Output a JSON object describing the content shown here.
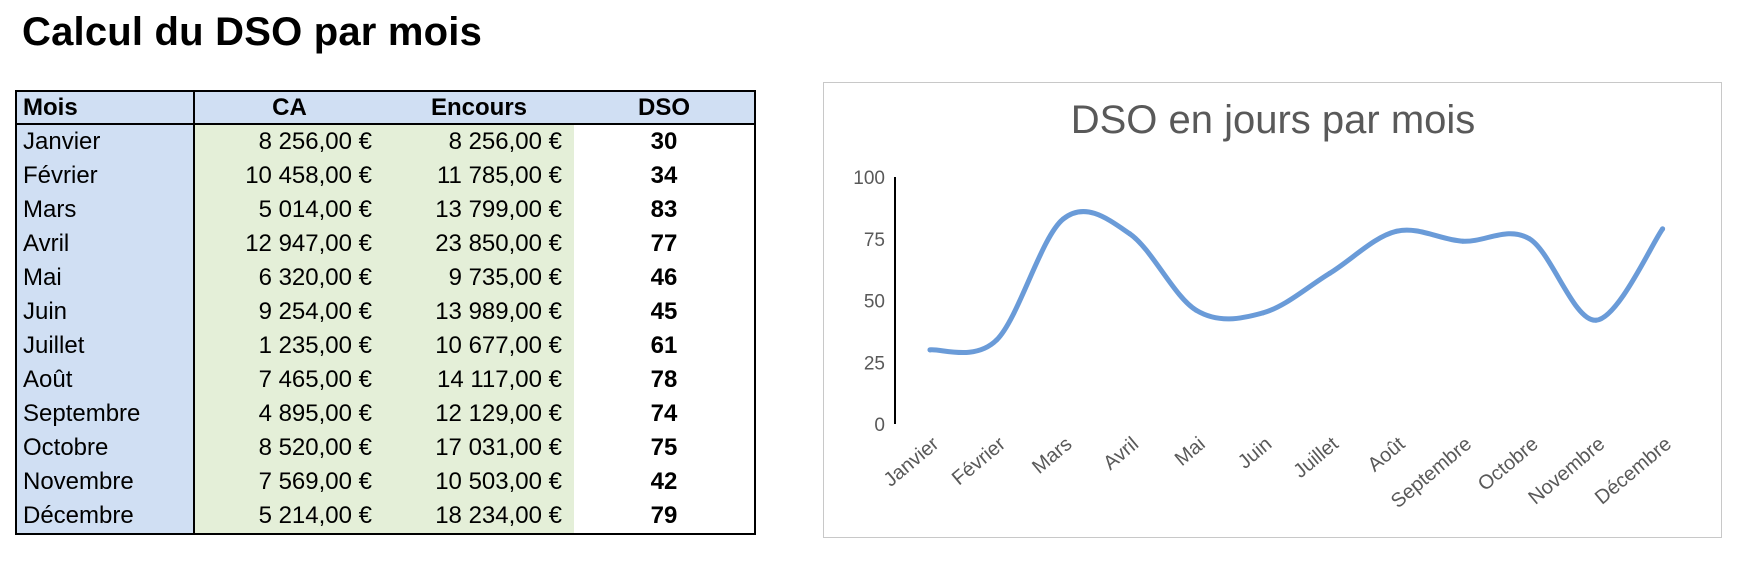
{
  "page": {
    "title": "Calcul du DSO par mois"
  },
  "table": {
    "headers": [
      "Mois",
      "CA",
      "Encours",
      "DSO"
    ],
    "rows": [
      {
        "mois": "Janvier",
        "ca": "8 256,00 €",
        "encours": "8 256,00 €",
        "dso": "30"
      },
      {
        "mois": "Février",
        "ca": "10 458,00 €",
        "encours": "11 785,00 €",
        "dso": "34"
      },
      {
        "mois": "Mars",
        "ca": "5 014,00 €",
        "encours": "13 799,00 €",
        "dso": "83"
      },
      {
        "mois": "Avril",
        "ca": "12 947,00 €",
        "encours": "23 850,00 €",
        "dso": "77"
      },
      {
        "mois": "Mai",
        "ca": "6 320,00 €",
        "encours": "9 735,00 €",
        "dso": "46"
      },
      {
        "mois": "Juin",
        "ca": "9 254,00 €",
        "encours": "13 989,00 €",
        "dso": "45"
      },
      {
        "mois": "Juillet",
        "ca": "1 235,00 €",
        "encours": "10 677,00 €",
        "dso": "61"
      },
      {
        "mois": "Août",
        "ca": "7 465,00 €",
        "encours": "14 117,00 €",
        "dso": "78"
      },
      {
        "mois": "Septembre",
        "ca": "4 895,00 €",
        "encours": "12 129,00 €",
        "dso": "74"
      },
      {
        "mois": "Octobre",
        "ca": "8 520,00 €",
        "encours": "17 031,00 €",
        "dso": "75"
      },
      {
        "mois": "Novembre",
        "ca": "7 569,00 €",
        "encours": "10 503,00 €",
        "dso": "42"
      },
      {
        "mois": "Décembre",
        "ca": "5 214,00 €",
        "encours": "18 234,00 €",
        "dso": "79"
      }
    ]
  },
  "colors": {
    "header_fill": "#d0dff3",
    "value_fill": "#e4efd8",
    "line": "#6a9bd8",
    "text_gray": "#595959"
  },
  "chart_data": {
    "type": "line",
    "title": "DSO en jours par mois",
    "categories": [
      "Janvier",
      "Février",
      "Mars",
      "Avril",
      "Mai",
      "Juin",
      "Juillet",
      "Août",
      "Septembre",
      "Octobre",
      "Novembre",
      "Décembre"
    ],
    "values": [
      30,
      34,
      83,
      77,
      46,
      45,
      61,
      78,
      74,
      75,
      42,
      79
    ],
    "xlabel": "",
    "ylabel": "",
    "ylim": [
      0,
      100
    ],
    "yticks": [
      0,
      25,
      50,
      75,
      100
    ],
    "smooth": true,
    "grid": false,
    "legend": "none"
  }
}
